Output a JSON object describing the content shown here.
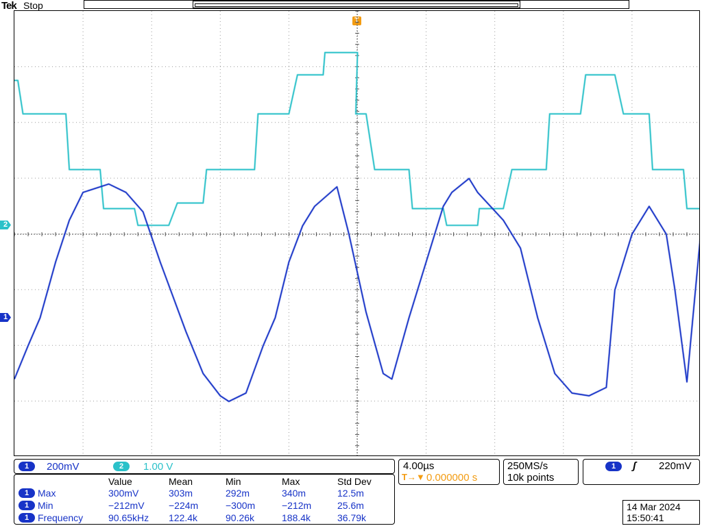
{
  "header": {
    "brand": "Tek",
    "status": "Stop",
    "trigger_marker": "T",
    "record_window": {
      "start_fraction": 0.2,
      "end_fraction": 0.8
    }
  },
  "channels": [
    {
      "id": "1",
      "label": "1",
      "scale": "200mV",
      "color": "#1733c7"
    },
    {
      "id": "2",
      "label": "2",
      "scale": "1.00 V",
      "color": "#2bc1c9"
    }
  ],
  "timebase": {
    "scale": "4.00µs",
    "delay_icon": "T→▼",
    "delay": "0.000000 s"
  },
  "acquisition": {
    "sample_rate": "250MS/s",
    "record_length": "10k points"
  },
  "trigger": {
    "source": "1",
    "slope_icon": "rising-edge-icon",
    "slope_glyph": "ʃ",
    "level": "220mV"
  },
  "measurements": {
    "headers": [
      "Value",
      "Mean",
      "Min",
      "Max",
      "Std Dev"
    ],
    "rows": [
      {
        "ch": "1",
        "name": "Max",
        "value": "300mV",
        "mean": "303m",
        "min": "292m",
        "max": "340m",
        "std": "12.5m"
      },
      {
        "ch": "1",
        "name": "Min",
        "value": "−212mV",
        "mean": "−224m",
        "min": "−300m",
        "max": "−212m",
        "std": "25.6m"
      },
      {
        "ch": "1",
        "name": "Frequency",
        "value": "90.65kHz",
        "mean": "122.4k",
        "min": "90.26k",
        "max": "188.4k",
        "std": "36.79k"
      }
    ]
  },
  "datetime": {
    "date": "14 Mar  2024",
    "time": "15:50:41"
  },
  "chart_data": {
    "type": "line",
    "grid": true,
    "xlim": [
      -20,
      20
    ],
    "xunit": "µs",
    "series": [
      {
        "name": "",
        "channel": "2",
        "unit": "V",
        "x": [
          -20,
          -19.8,
          -19.5,
          -17.0,
          -16.8,
          -15.0,
          -14.8,
          -13.0,
          -12.8,
          -11.0,
          -10.5,
          -9.0,
          -8.8,
          -6.0,
          -5.8,
          -4.0,
          -3.5,
          -2.0,
          -1.9,
          0.0,
          -0.1,
          0.5,
          1.0,
          3.0,
          3.2,
          5.0,
          5.2,
          7.0,
          7.1,
          8.5,
          9.0,
          11.0,
          11.2,
          13.0,
          13.3,
          15.0,
          15.5,
          17.0,
          17.2,
          19.0,
          19.2,
          20.0
        ],
        "y": [
          2.6,
          2.6,
          2.0,
          2.0,
          1.0,
          1.0,
          0.3,
          0.3,
          0.0,
          0.0,
          0.4,
          0.4,
          1.0,
          1.0,
          2.0,
          2.0,
          2.7,
          2.7,
          3.1,
          3.1,
          2.0,
          2.0,
          1.0,
          1.0,
          0.3,
          0.3,
          0.0,
          0.0,
          0.3,
          0.3,
          1.0,
          1.0,
          2.0,
          2.0,
          2.7,
          2.7,
          2.0,
          2.0,
          1.0,
          1.0,
          0.3,
          0.3
        ]
      },
      {
        "name": "",
        "channel": "1",
        "unit": "V",
        "x": [
          -20,
          -19.2,
          -18.5,
          -17.6,
          -16.8,
          -16.0,
          -14.5,
          -13.5,
          -12.5,
          -11.5,
          -10.0,
          -9.0,
          -8.0,
          -7.5,
          -6.5,
          -5.5,
          -4.8,
          -4.0,
          -3.2,
          -2.5,
          -1.2,
          -0.5,
          0.5,
          1.5,
          2.0,
          3.0,
          4.0,
          5.0,
          5.5,
          6.5,
          7.0,
          8.5,
          9.5,
          10.5,
          11.5,
          12.5,
          13.5,
          14.5,
          15.0,
          16.0,
          17.0,
          18.0,
          18.5,
          19.2,
          20.0
        ],
        "y": [
          -0.22,
          -0.1,
          0.0,
          0.2,
          0.35,
          0.45,
          0.48,
          0.45,
          0.38,
          0.2,
          -0.05,
          -0.2,
          -0.28,
          -0.3,
          -0.27,
          -0.1,
          0.0,
          0.2,
          0.33,
          0.4,
          0.47,
          0.3,
          0.02,
          -0.2,
          -0.22,
          0.0,
          0.2,
          0.4,
          0.45,
          0.5,
          0.45,
          0.35,
          0.25,
          0.0,
          -0.2,
          -0.27,
          -0.28,
          -0.25,
          0.1,
          0.3,
          0.4,
          0.3,
          0.1,
          -0.23,
          0.3
        ]
      }
    ]
  }
}
